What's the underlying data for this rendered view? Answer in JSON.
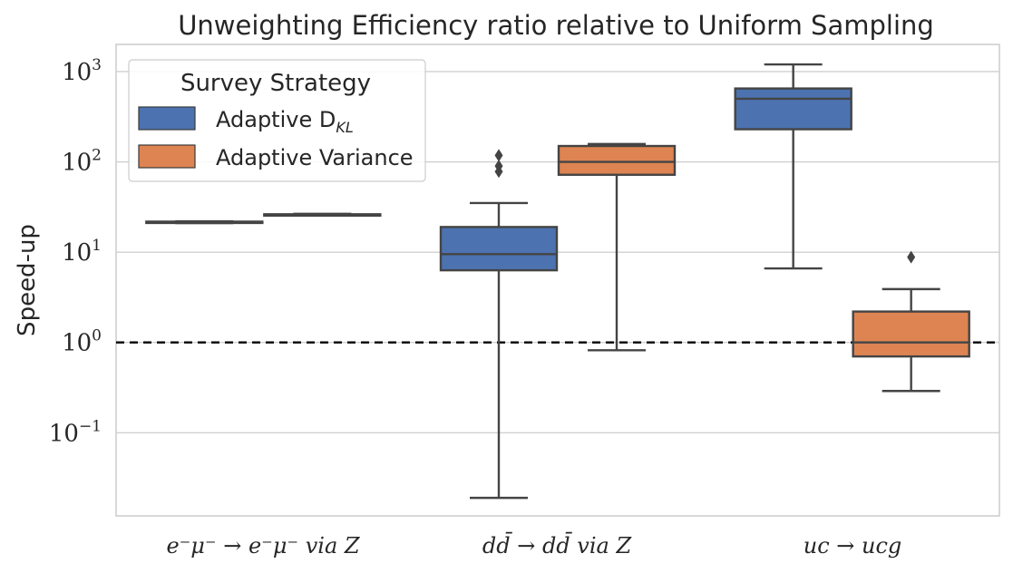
{
  "chart_data": {
    "type": "box",
    "title": "Unweighting Efficiency ratio relative to Uniform Sampling",
    "xlabel": "",
    "ylabel": "Speed-up",
    "yscale": "log",
    "ylim": [
      0.012,
      2000
    ],
    "yticks": [
      {
        "value": 0.1,
        "base": "10",
        "exp": "−1"
      },
      {
        "value": 1,
        "base": "10",
        "exp": "0"
      },
      {
        "value": 10,
        "base": "10",
        "exp": "1"
      },
      {
        "value": 100,
        "base": "10",
        "exp": "2"
      },
      {
        "value": 1000,
        "base": "10",
        "exp": "3"
      }
    ],
    "reference_line": {
      "value": 1,
      "style": "dashed"
    },
    "categories": [
      {
        "label": "e⁻μ⁻ → e⁻μ⁻ via Z"
      },
      {
        "label": "dd̄ → dd̄ via Z"
      },
      {
        "label": "uc → ucg"
      }
    ],
    "legend": {
      "title": "Survey Strategy",
      "placement": "upper-left"
    },
    "series": [
      {
        "name": "Adaptive D_KL",
        "legend_label": "Adaptive D",
        "legend_sub": "KL",
        "color": "#4c72b0",
        "boxes": [
          {
            "whislo": 21.0,
            "q1": 21.2,
            "med": 21.5,
            "q3": 21.8,
            "whishi": 22.0,
            "fliers": []
          },
          {
            "whislo": 0.019,
            "q1": 6.3,
            "med": 9.5,
            "q3": 19.0,
            "whishi": 35.0,
            "fliers": [
              78,
              90,
              118
            ]
          },
          {
            "whislo": 6.6,
            "q1": 230,
            "med": 500,
            "q3": 650,
            "whishi": 1200,
            "fliers": []
          }
        ]
      },
      {
        "name": "Adaptive Variance",
        "legend_label": "Adaptive Variance",
        "color": "#dd8452",
        "boxes": [
          {
            "whislo": 25.5,
            "q1": 25.7,
            "med": 26.0,
            "q3": 26.3,
            "whishi": 26.6,
            "fliers": []
          },
          {
            "whislo": 0.82,
            "q1": 72,
            "med": 100,
            "q3": 150,
            "whishi": 158,
            "fliers": []
          },
          {
            "whislo": 0.29,
            "q1": 0.7,
            "med": 1.0,
            "q3": 2.2,
            "whishi": 3.9,
            "fliers": [
              8.8
            ]
          }
        ]
      }
    ]
  }
}
